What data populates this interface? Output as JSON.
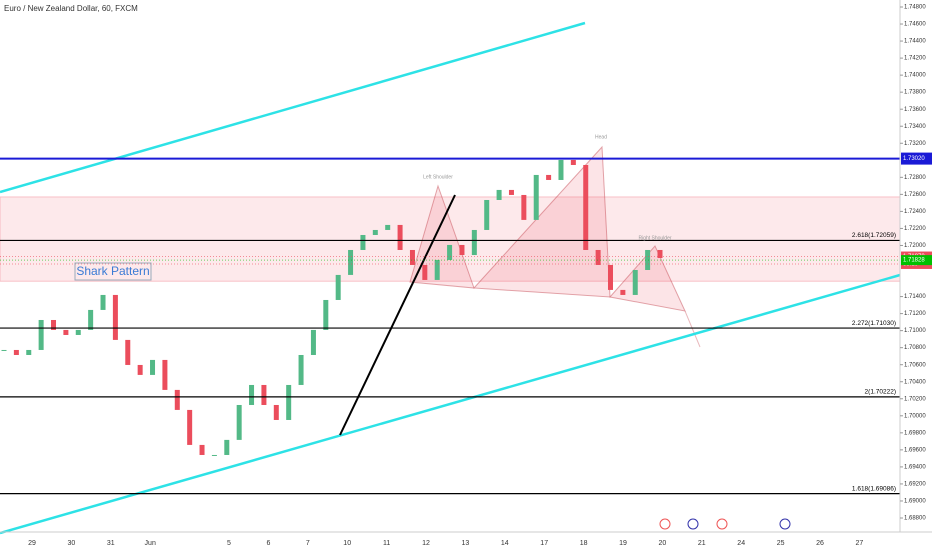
{
  "chart_data": {
    "type": "candlestick",
    "title": "Euro / New Zealand Dollar, 60, FXCM",
    "annotation": "Shark Pattern",
    "pattern_labels": [
      "Left Shoulder",
      "Head",
      "Right Shoulder"
    ],
    "categories": [
      "29",
      "30",
      "31",
      "Jun",
      null,
      "5",
      "6",
      "7",
      "10",
      "11",
      "12",
      "13",
      "14",
      "17",
      "18",
      "19",
      "20",
      "21",
      "24",
      "25",
      "26",
      "27"
    ],
    "closes": [
      1.70773,
      1.70714,
      1.70773,
      1.71125,
      1.71008,
      1.70949,
      1.71008,
      1.71243,
      1.71419,
      1.70891,
      1.70597,
      1.7048,
      1.70656,
      1.70304,
      1.70069,
      1.69658,
      1.6954,
      1.6954,
      1.69717,
      1.70127,
      1.70362,
      1.70127,
      1.69951,
      1.70362,
      1.70714,
      1.71008,
      1.7136,
      1.71654,
      1.71947,
      1.72123,
      1.72182,
      1.72241,
      1.71947,
      1.71771,
      1.71595,
      1.7183,
      1.72006,
      1.71888,
      1.72182,
      1.72534,
      1.72652,
      1.72593,
      1.723,
      1.72828,
      1.72769,
      1.73004,
      1.72945,
      1.71947,
      1.71771,
      1.71478,
      1.71419,
      1.71712,
      1.71947,
      1.71853
    ],
    "up_color": "#53b987",
    "down_color": "#eb4d5c",
    "ylim": [
      1.688,
      1.748
    ],
    "yticks": [
      {
        "value": 1.748,
        "label": "1.74800"
      },
      {
        "value": 1.746,
        "label": "1.74600"
      },
      {
        "value": 1.744,
        "label": "1.74400"
      },
      {
        "value": 1.742,
        "label": "1.74200"
      },
      {
        "value": 1.74,
        "label": "1.74000"
      },
      {
        "value": 1.738,
        "label": "1.73800"
      },
      {
        "value": 1.736,
        "label": "1.73600"
      },
      {
        "value": 1.734,
        "label": "1.73400"
      },
      {
        "value": 1.732,
        "label": "1.73200"
      },
      {
        "value": 1.728,
        "label": "1.72800"
      },
      {
        "value": 1.726,
        "label": "1.72600"
      },
      {
        "value": 1.724,
        "label": "1.72400"
      },
      {
        "value": 1.722,
        "label": "1.72200"
      },
      {
        "value": 1.72,
        "label": "1.72000"
      },
      {
        "value": 1.714,
        "label": "1.71400"
      },
      {
        "value": 1.712,
        "label": "1.71200"
      },
      {
        "value": 1.71,
        "label": "1.71000"
      },
      {
        "value": 1.708,
        "label": "1.70800"
      },
      {
        "value": 1.706,
        "label": "1.70600"
      },
      {
        "value": 1.704,
        "label": "1.70400"
      },
      {
        "value": 1.702,
        "label": "1.70200"
      },
      {
        "value": 1.7,
        "label": "1.70000"
      },
      {
        "value": 1.698,
        "label": "1.69800"
      },
      {
        "value": 1.696,
        "label": "1.69600"
      },
      {
        "value": 1.694,
        "label": "1.69400"
      },
      {
        "value": 1.692,
        "label": "1.69200"
      },
      {
        "value": 1.69,
        "label": "1.69000"
      },
      {
        "value": 1.688,
        "label": "1.68800"
      }
    ],
    "levels": [
      {
        "value": 1.7302,
        "label": "1.73020",
        "color": "#1a1ad6"
      },
      {
        "value": 1.72059,
        "label": "2.618(1.72059)",
        "color": "#000000"
      },
      {
        "value": 1.7103,
        "label": "2.272(1.71030)",
        "color": "#000000"
      },
      {
        "value": 1.70222,
        "label": "2(1.70222)",
        "color": "#000000"
      },
      {
        "value": 1.69086,
        "label": "1.618(1.69086)",
        "color": "#000000"
      }
    ],
    "price_tags": [
      {
        "value": 1.7187,
        "label": "1.71870",
        "color": "#eb4d5c"
      },
      {
        "value": 1.71783,
        "label": "58:19",
        "color": "#eb4d5c"
      },
      {
        "value": 1.71828,
        "label": "1.71828",
        "color": "#00c000"
      }
    ],
    "zone": [
      1.7158,
      1.7257
    ]
  }
}
